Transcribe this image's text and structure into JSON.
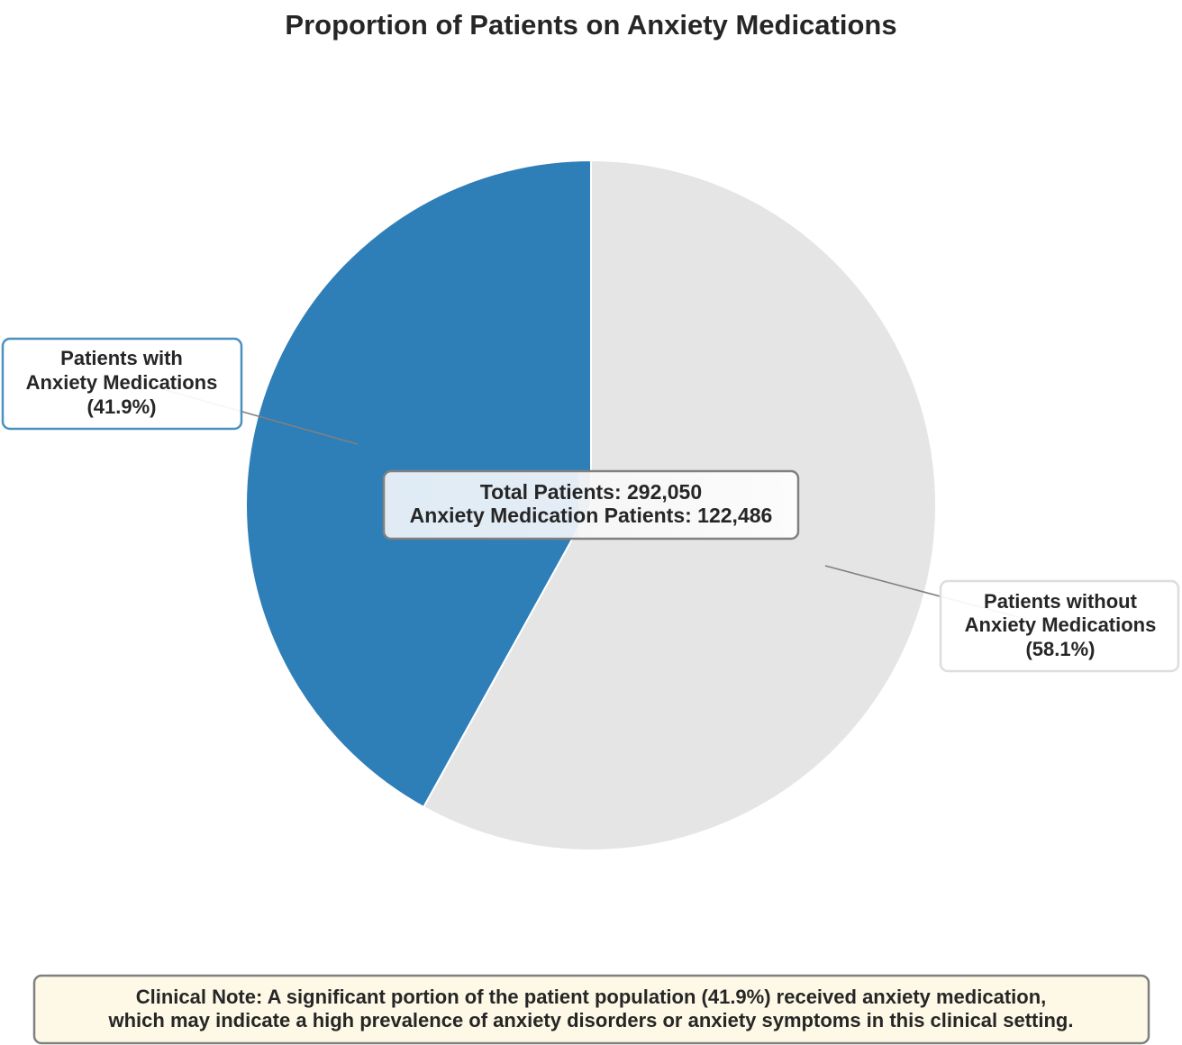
{
  "chart_data": {
    "type": "pie",
    "title": "Proportion of Patients on Anxiety Medications",
    "start_angle_deg": 90,
    "direction": "counterclockwise",
    "slices": [
      {
        "label_lines": [
          "Patients with",
          "Anxiety Medications",
          "(41.9%)"
        ],
        "value": 122486,
        "percent": 41.9,
        "color": "#2e7eb8",
        "label_border_color": "#4a90c0"
      },
      {
        "label_lines": [
          "Patients without",
          "Anxiety Medications",
          "(58.1%)"
        ],
        "value": 169564,
        "percent": 58.1,
        "color": "#e5e5e5",
        "label_border_color": "#dddddd"
      }
    ],
    "center_box": {
      "line1": "Total Patients: 292,050",
      "line2": "Anxiety Medication Patients: 122,486"
    },
    "note": {
      "line1": "Clinical Note: A significant portion of the patient population (41.9%) received anxiety medication,",
      "line2": "which may indicate a high prevalence of anxiety disorders or anxiety symptoms in this clinical setting.",
      "background": "#fef9e6",
      "border_color": "#808080"
    },
    "legend": "none",
    "grid": false
  }
}
